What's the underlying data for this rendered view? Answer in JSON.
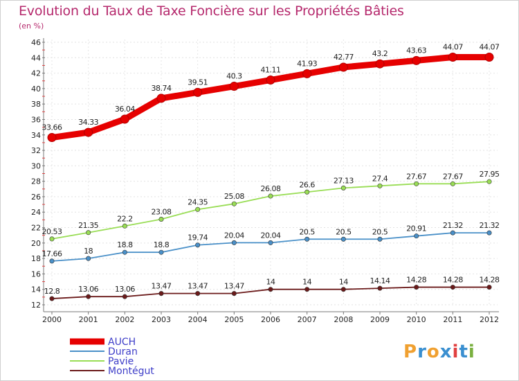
{
  "chart_data": {
    "type": "line",
    "title": "Evolution du Taux de Taxe Foncière sur les Propriétés Bâties",
    "subtitle": "(en %)",
    "x": [
      "2000",
      "2001",
      "2002",
      "2003",
      "2004",
      "2005",
      "2006",
      "2007",
      "2008",
      "2009",
      "2010",
      "2011",
      "2012"
    ],
    "ylim": [
      12,
      46
    ],
    "yticks": [
      12,
      14,
      16,
      18,
      20,
      22,
      24,
      26,
      28,
      30,
      32,
      34,
      36,
      38,
      40,
      42,
      44,
      46
    ],
    "grid": true,
    "legend_position": "bottom-left",
    "series": [
      {
        "name": "AUCH",
        "color": "#e60000",
        "values": [
          33.66,
          34.33,
          36.04,
          38.74,
          39.51,
          40.3,
          41.11,
          41.93,
          42.77,
          43.2,
          43.63,
          44.07,
          44.07
        ],
        "labels": [
          "33.66",
          "34.33",
          "36.04",
          "38.74",
          "39.51",
          "40.3",
          "41.11",
          "41.93",
          "42.77",
          "43.2",
          "43.63",
          "44.07",
          "44.07"
        ]
      },
      {
        "name": "Duran",
        "color": "#4a90c8",
        "values": [
          17.66,
          18,
          18.8,
          18.8,
          19.74,
          20.04,
          20.04,
          20.5,
          20.5,
          20.5,
          20.91,
          21.32,
          21.32
        ],
        "labels": [
          "17.66",
          "18",
          "18.8",
          "18.8",
          "19.74",
          "20.04",
          "20.04",
          "20.5",
          "20.5",
          "20.5",
          "20.91",
          "21.32",
          "21.32"
        ]
      },
      {
        "name": "Pavie",
        "color": "#99dd55",
        "values": [
          20.53,
          21.35,
          22.2,
          23.08,
          24.35,
          25.08,
          26.08,
          26.6,
          27.13,
          27.4,
          27.67,
          27.67,
          27.95
        ],
        "labels": [
          "20.53",
          "21.35",
          "22.2",
          "23.08",
          "24.35",
          "25.08",
          "26.08",
          "26.6",
          "27.13",
          "27.4",
          "27.67",
          "27.67",
          "27.95"
        ]
      },
      {
        "name": "Montégut",
        "color": "#6b1a1a",
        "values": [
          12.8,
          13.06,
          13.06,
          13.47,
          13.47,
          13.47,
          14,
          14,
          14,
          14.14,
          14.28,
          14.28,
          14.28
        ],
        "labels": [
          "12.8",
          "13.06",
          "13.06",
          "13.47",
          "13.47",
          "13.47",
          "14",
          "14",
          "14",
          "14.14",
          "14.28",
          "14.28",
          "14.28"
        ]
      }
    ]
  },
  "logo": {
    "text": "Proxiti",
    "letters": [
      "P",
      "r",
      "o",
      "x",
      "i",
      "t",
      "i"
    ],
    "colors": [
      "#f0a030",
      "#3a8fd0",
      "#f0a030",
      "#3a8fd0",
      "#e04040",
      "#3a8fd0",
      "#7ab040"
    ]
  }
}
